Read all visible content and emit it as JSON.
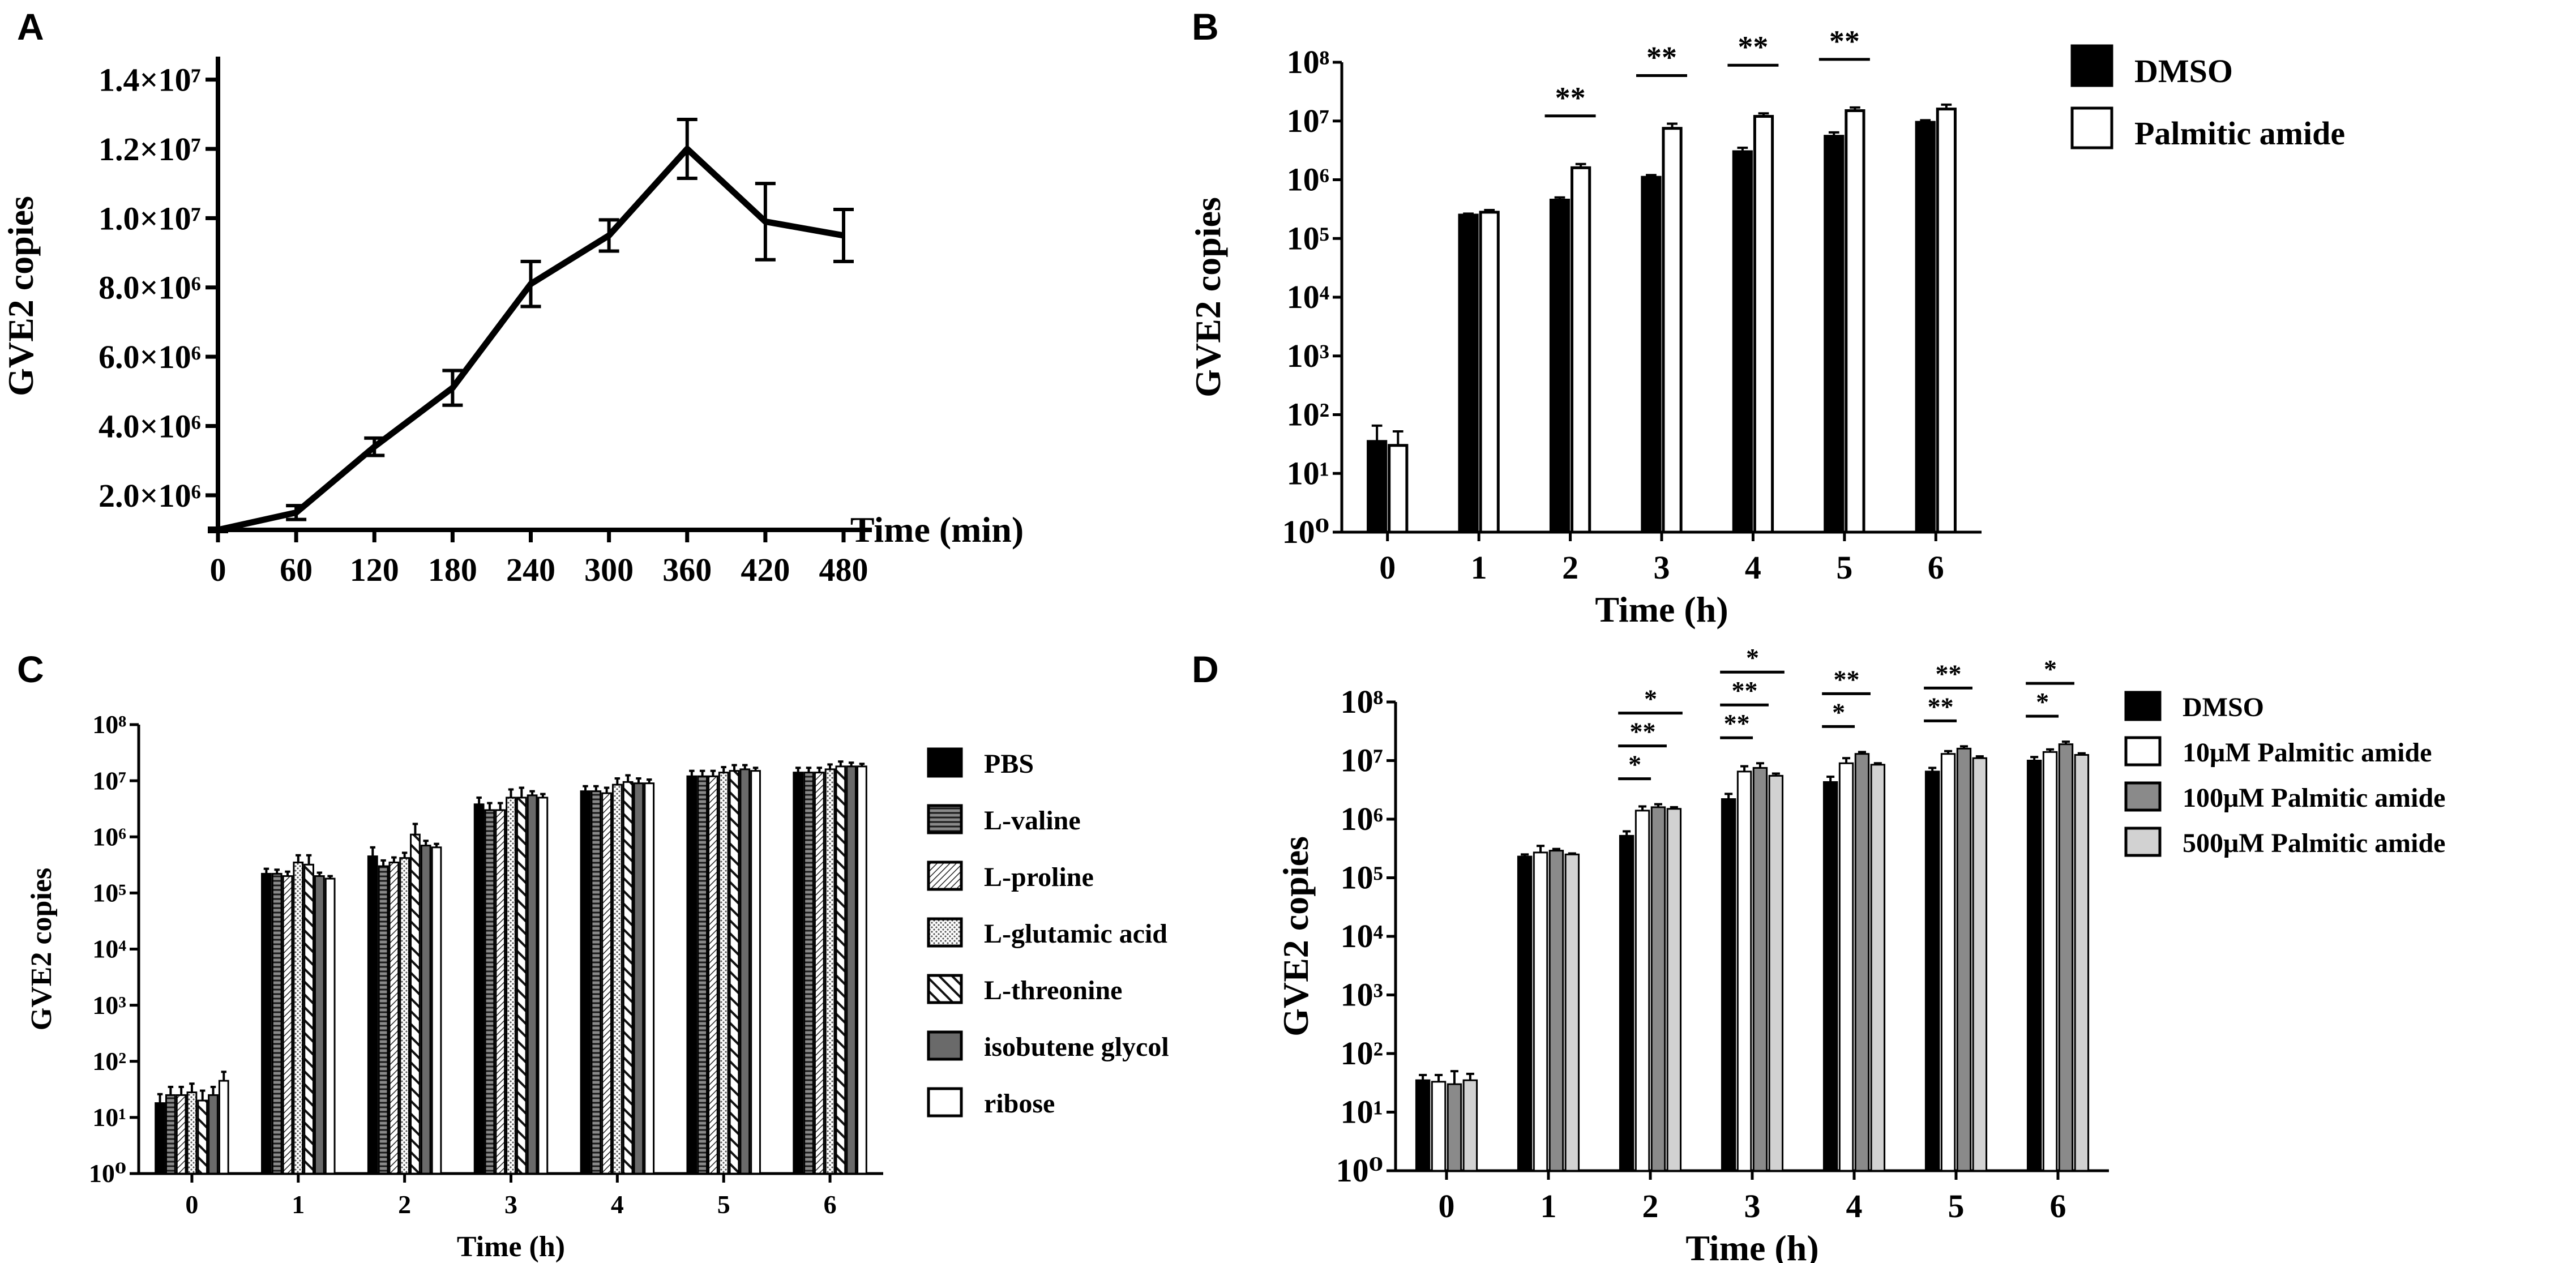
{
  "chart_data": [
    {
      "id": "A",
      "panel_label": "A",
      "type": "line",
      "xlabel": "Time (min)",
      "ylabel": "GVE2  copies",
      "x": [
        0,
        60,
        120,
        180,
        240,
        300,
        360,
        420,
        480
      ],
      "xticks": [
        "0",
        "60",
        "120",
        "180",
        "240",
        "300",
        "360",
        "420",
        "480"
      ],
      "values": [
        1000000,
        1500000,
        3400000,
        5100000,
        8100000,
        9500000,
        12000000,
        9900000,
        9500000
      ],
      "errors": [
        50000,
        200000,
        250000,
        500000,
        650000,
        450000,
        850000,
        1100000,
        750000
      ],
      "ylim": [
        1000000,
        14500000
      ],
      "yticks": [
        2000000,
        4000000,
        6000000,
        8000000,
        10000000,
        12000000,
        14000000
      ],
      "ytick_labels": [
        "2.0×10⁶",
        "4.0×10⁶",
        "6.0×10⁶",
        "8.0×10⁶",
        "1.0×10⁷",
        "1.2×10⁷",
        "1.4×10⁷"
      ]
    },
    {
      "id": "B",
      "panel_label": "B",
      "type": "bar",
      "yscale": "log",
      "xlabel": "Time (h)",
      "ylabel": "GVE2 copies",
      "categories": [
        "0",
        "1",
        "2",
        "3",
        "4",
        "5",
        "6"
      ],
      "ylim_exp": [
        0,
        8
      ],
      "ytick_labels": [
        "10⁰",
        "10¹",
        "10²",
        "10³",
        "10⁴",
        "10⁵",
        "10⁶",
        "10⁷",
        "10⁸"
      ],
      "series": [
        {
          "name": "DMSO",
          "color": "#000000",
          "pattern": "solid",
          "values": [
            35,
            250000,
            450000,
            1100000,
            3000000,
            5500000,
            9500000
          ],
          "errors": [
            30,
            15000,
            50000,
            100000,
            500000,
            900000,
            800000
          ]
        },
        {
          "name": "Palmitic amide",
          "color": "#ffffff",
          "pattern": "open",
          "values": [
            30,
            280000,
            1600000,
            7500000,
            12000000,
            15000000,
            16000000
          ],
          "errors": [
            22,
            25000,
            250000,
            1500000,
            1500000,
            2000000,
            3000000
          ]
        }
      ],
      "annotations": [
        {
          "category": 2,
          "text": "**"
        },
        {
          "category": 3,
          "text": "**"
        },
        {
          "category": 4,
          "text": "**"
        },
        {
          "category": 5,
          "text": "**"
        }
      ]
    },
    {
      "id": "C",
      "panel_label": "C",
      "type": "bar",
      "yscale": "log",
      "xlabel": "Time (h)",
      "ylabel": "GVE2 copies",
      "categories": [
        "0",
        "1",
        "2",
        "3",
        "4",
        "5",
        "6"
      ],
      "ylim_exp": [
        0,
        8
      ],
      "ytick_labels": [
        "10⁰",
        "10¹",
        "10²",
        "10³",
        "10⁴",
        "10⁵",
        "10⁶",
        "10⁷",
        "10⁸"
      ],
      "series": [
        {
          "name": "PBS",
          "color": "#000000",
          "pattern": "solid",
          "values": [
            18,
            220000,
            450000,
            3800000,
            6500000,
            12000000,
            14000000
          ],
          "errors": [
            8,
            50000,
            200000,
            1200000,
            1500000,
            3000000,
            3000000
          ]
        },
        {
          "name": "L-valine",
          "color": "#7a7a7a",
          "pattern": "hline",
          "values": [
            25,
            220000,
            300000,
            3000000,
            6500000,
            12000000,
            14000000
          ],
          "errors": [
            10,
            40000,
            80000,
            1000000,
            1500000,
            3000000,
            3000000
          ]
        },
        {
          "name": "L-proline",
          "color": "#ffffff",
          "pattern": "diag",
          "values": [
            25,
            200000,
            350000,
            3000000,
            6000000,
            12000000,
            14000000
          ],
          "errors": [
            10,
            40000,
            80000,
            1000000,
            1500000,
            3000000,
            3000000
          ]
        },
        {
          "name": "L-glutamic acid",
          "color": "#ffffff",
          "pattern": "dots",
          "values": [
            28,
            350000,
            420000,
            5000000,
            8500000,
            14000000,
            16000000
          ],
          "errors": [
            12,
            120000,
            100000,
            2000000,
            2500000,
            3500000,
            3500000
          ]
        },
        {
          "name": "L-threonine",
          "color": "#ffffff",
          "pattern": "thickdiag",
          "values": [
            20,
            320000,
            1100000,
            5000000,
            9500000,
            15000000,
            18000000
          ],
          "errors": [
            10,
            150000,
            600000,
            2500000,
            3000000,
            4000000,
            4000000
          ]
        },
        {
          "name": "isobutene glycol",
          "color": "#6a6a6a",
          "pattern": "solid",
          "values": [
            25,
            200000,
            700000,
            5500000,
            9000000,
            16000000,
            18000000
          ],
          "errors": [
            10,
            30000,
            150000,
            1000000,
            2000000,
            3000000,
            3000000
          ]
        },
        {
          "name": "ribose",
          "color": "#ffffff",
          "pattern": "open",
          "values": [
            45,
            180000,
            650000,
            5000000,
            9000000,
            15000000,
            18000000
          ],
          "errors": [
            20,
            20000,
            100000,
            800000,
            1500000,
            2000000,
            2000000
          ]
        }
      ]
    },
    {
      "id": "D",
      "panel_label": "D",
      "type": "bar",
      "yscale": "log",
      "xlabel": "Time (h)",
      "ylabel": "GVE2 copies",
      "categories": [
        "0",
        "1",
        "2",
        "3",
        "4",
        "5",
        "6"
      ],
      "ylim_exp": [
        0,
        8
      ],
      "ytick_labels": [
        "10⁰",
        "10¹",
        "10²",
        "10³",
        "10⁴",
        "10⁵",
        "10⁶",
        "10⁷",
        "10⁸"
      ],
      "series": [
        {
          "name": "DMSO",
          "color": "#000000",
          "pattern": "solid",
          "values": [
            35,
            230000,
            520000,
            2200000,
            4300000,
            6500000,
            10000000
          ],
          "errors": [
            8,
            20000,
            100000,
            500000,
            1000000,
            1000000,
            1500000
          ]
        },
        {
          "name": "10μM Palmitic amide",
          "color": "#ffffff",
          "pattern": "open",
          "values": [
            33,
            270000,
            1400000,
            6500000,
            9000000,
            13000000,
            14000000
          ],
          "errors": [
            10,
            80000,
            250000,
            1500000,
            2000000,
            1500000,
            1500000
          ]
        },
        {
          "name": "100μM Palmitic amide",
          "color": "#8a8a8a",
          "pattern": "solid",
          "values": [
            30,
            290000,
            1600000,
            7500000,
            13000000,
            16000000,
            19000000
          ],
          "errors": [
            20,
            20000,
            200000,
            1500000,
            1000000,
            1500000,
            2000000
          ]
        },
        {
          "name": "500μM Palmitic amide",
          "color": "#d2d2d2",
          "pattern": "solid",
          "values": [
            35,
            250000,
            1500000,
            5500000,
            8500000,
            11000000,
            12500000
          ],
          "errors": [
            10,
            10000,
            100000,
            500000,
            500000,
            800000,
            800000
          ]
        }
      ],
      "annotations": [
        {
          "category": 2,
          "from": 0,
          "to": 1,
          "level": 0,
          "text": "*"
        },
        {
          "category": 2,
          "from": 0,
          "to": 2,
          "level": 1,
          "text": "**"
        },
        {
          "category": 2,
          "from": 0,
          "to": 3,
          "level": 2,
          "text": "*"
        },
        {
          "category": 3,
          "from": 0,
          "to": 1,
          "level": 0,
          "text": "**"
        },
        {
          "category": 3,
          "from": 0,
          "to": 2,
          "level": 1,
          "text": "**"
        },
        {
          "category": 3,
          "from": 0,
          "to": 3,
          "level": 2,
          "text": "*"
        },
        {
          "category": 4,
          "from": 0,
          "to": 1,
          "level": 0,
          "text": "*"
        },
        {
          "category": 4,
          "from": 0,
          "to": 2,
          "level": 1,
          "text": "**"
        },
        {
          "category": 5,
          "from": 0,
          "to": 1,
          "level": 0,
          "text": "**"
        },
        {
          "category": 5,
          "from": 0,
          "to": 2,
          "level": 1,
          "text": "**"
        },
        {
          "category": 6,
          "from": 0,
          "to": 1,
          "level": 0,
          "text": "*"
        },
        {
          "category": 6,
          "from": 0,
          "to": 2,
          "level": 1,
          "text": "*"
        }
      ]
    }
  ]
}
